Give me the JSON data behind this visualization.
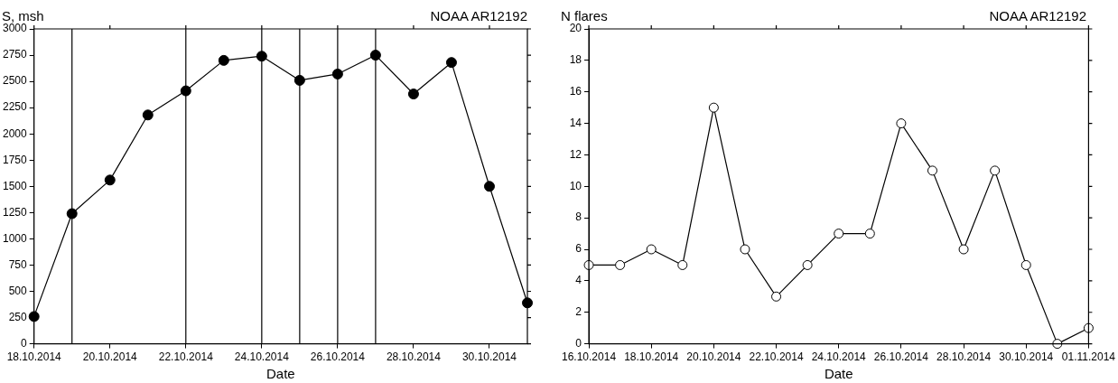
{
  "chart_data": [
    {
      "type": "line",
      "title": "NOAA AR12192",
      "ylabel": "S, msh",
      "xlabel": "Date",
      "marker": "circle",
      "line_style": "solid",
      "grid": false,
      "legend": false,
      "x": [
        "2014-10-18",
        "2014-10-19",
        "2014-10-20",
        "2014-10-21",
        "2014-10-22",
        "2014-10-23",
        "2014-10-24",
        "2014-10-25",
        "2014-10-26",
        "2014-10-27",
        "2014-10-28",
        "2014-10-29",
        "2014-10-30",
        "2014-10-31"
      ],
      "series": [
        {
          "color": "#000000",
          "values": [
            260,
            1240,
            1560,
            2180,
            2410,
            2700,
            2740,
            2510,
            2570,
            2750,
            2380,
            2680,
            1500,
            390
          ]
        }
      ],
      "xlim": [
        "2014-10-18",
        "2014-10-31"
      ],
      "xticks": [
        {
          "value": "2014-10-18",
          "label": "18.10.2014"
        },
        {
          "value": "2014-10-20",
          "label": "20.10.2014"
        },
        {
          "value": "2014-10-22",
          "label": "22.10.2014"
        },
        {
          "value": "2014-10-24",
          "label": "24.10.2014"
        },
        {
          "value": "2014-10-26",
          "label": "26.10.2014"
        },
        {
          "value": "2014-10-28",
          "label": "28.10.2014"
        },
        {
          "value": "2014-10-30",
          "label": "30.10.2014"
        }
      ],
      "ylim": [
        0,
        3000
      ],
      "yticks": [
        0,
        250,
        500,
        750,
        1000,
        1250,
        1500,
        1750,
        2000,
        2250,
        2500,
        2750,
        3000
      ],
      "ref_lines": [
        {
          "axis": "x",
          "value": "2014-10-19",
          "color": "#000000"
        },
        {
          "axis": "x",
          "value": "2014-10-22",
          "color": "#000000"
        },
        {
          "axis": "x",
          "value": "2014-10-24",
          "color": "#000000"
        },
        {
          "axis": "x",
          "value": "2014-10-25",
          "color": "#000000"
        },
        {
          "axis": "x",
          "value": "2014-10-26",
          "color": "#000000"
        },
        {
          "axis": "x",
          "value": "2014-10-27",
          "color": "#000000"
        }
      ]
    },
    {
      "type": "line",
      "title": "NOAA AR12192",
      "ylabel": "N flares",
      "xlabel": "Date",
      "marker": "circle",
      "line_style": "solid",
      "grid": false,
      "legend": false,
      "x": [
        "2014-10-16",
        "2014-10-17",
        "2014-10-18",
        "2014-10-19",
        "2014-10-20",
        "2014-10-21",
        "2014-10-22",
        "2014-10-23",
        "2014-10-24",
        "2014-10-25",
        "2014-10-26",
        "2014-10-27",
        "2014-10-28",
        "2014-10-29",
        "2014-10-30",
        "2014-10-31",
        "2014-11-01"
      ],
      "series": [
        {
          "color": "#000000",
          "values": [
            5,
            5,
            6,
            5,
            15,
            6,
            3,
            5,
            7,
            7,
            14,
            11,
            6,
            11,
            5,
            0,
            1
          ]
        }
      ],
      "xlim": [
        "2014-10-16",
        "2014-11-01"
      ],
      "xticks": [
        {
          "value": "2014-10-16",
          "label": "16.10.2014"
        },
        {
          "value": "2014-10-18",
          "label": "18.10.2014"
        },
        {
          "value": "2014-10-20",
          "label": "20.10.2014"
        },
        {
          "value": "2014-10-22",
          "label": "22.10.2014"
        },
        {
          "value": "2014-10-24",
          "label": "24.10.2014"
        },
        {
          "value": "2014-10-26",
          "label": "26.10.2014"
        },
        {
          "value": "2014-10-28",
          "label": "28.10.2014"
        },
        {
          "value": "2014-10-30",
          "label": "30.10.2014"
        },
        {
          "value": "2014-11-01",
          "label": "01.11.2014"
        }
      ],
      "ylim": [
        0,
        20
      ],
      "yticks": [
        0,
        2,
        4,
        6,
        8,
        10,
        12,
        14,
        16,
        18,
        20
      ]
    }
  ]
}
